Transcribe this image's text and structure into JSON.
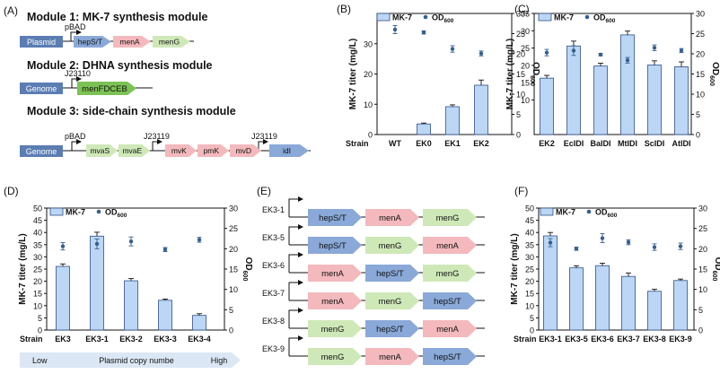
{
  "colors": {
    "bar": "#bcd7f5",
    "bar_stroke": "#2f4f8a",
    "od": "#355f8f",
    "genome": "#5b7db3",
    "plasmid": "#5b7db3",
    "pink": "#f3b9bd",
    "green": "#cfe8b8",
    "blue": "#8aa9d8",
    "dark_green": "#7cc254",
    "copy_arrow": "#dbe7f4"
  },
  "panelA": {
    "label": "(A)",
    "module1": {
      "title": "Module 1:  MK-7 synthesis module",
      "host": "Plasmid",
      "promoter": "pBAD",
      "genes": [
        "hepS/T",
        "menA",
        "menG"
      ]
    },
    "module2": {
      "title": "Module 2:  DHNA synthesis module",
      "host": "Genome",
      "promoter": "J23110",
      "genes": [
        "menFDCEB"
      ]
    },
    "module3": {
      "title": "Module 3:  side-chain synthesis module",
      "host": "Genome",
      "promoters": [
        "pBAD",
        "J23119",
        "J23119"
      ],
      "genes": [
        "mvaS",
        "mvaE",
        "mvK",
        "pmK",
        "mvD",
        "idI"
      ]
    }
  },
  "panelE": {
    "label": "(E)",
    "rows": [
      {
        "strain": "EK3-1",
        "genes": [
          "hepS/T",
          "menA",
          "menG"
        ]
      },
      {
        "strain": "EK3-5",
        "genes": [
          "hepS/T",
          "menG",
          "menA"
        ]
      },
      {
        "strain": "EK3-6",
        "genes": [
          "menA",
          "hepS/T",
          "menG"
        ]
      },
      {
        "strain": "EK3-7",
        "genes": [
          "menA",
          "menG",
          "hepS/T"
        ]
      },
      {
        "strain": "EK3-8",
        "genes": [
          "menG",
          "hepS/T",
          "menA"
        ]
      },
      {
        "strain": "EK3-9",
        "genes": [
          "menG",
          "menA",
          "hepS/T"
        ]
      }
    ]
  },
  "copy_number": {
    "low": "Low",
    "mid": "Plasmid copy numbe",
    "high": "High"
  },
  "chart_data": [
    {
      "id": "B",
      "label": "(B)",
      "type": "bar",
      "strain_label": "Strain",
      "categories": [
        "WT",
        "EK0",
        "EK1",
        "EK2"
      ],
      "series": [
        {
          "name": "MK-7",
          "values": [
            0,
            3.5,
            9.2,
            16.3
          ],
          "errors": [
            0,
            0.3,
            0.6,
            1.7
          ]
        },
        {
          "name": "OD",
          "values": [
            26.0,
            25.3,
            21.2,
            20.1
          ],
          "errors": [
            1.0,
            0.4,
            0.8,
            0.6
          ]
        }
      ],
      "ylabel": "MK-7 titer (mg/L)",
      "y2label": "OD",
      "y2label_sub": "600",
      "ylim": [
        0,
        40
      ],
      "yticks": [
        0,
        10,
        20,
        30
      ],
      "y2lim": [
        0,
        30
      ],
      "y2ticks": [
        0,
        5,
        10,
        15,
        20,
        25,
        30
      ],
      "legend": {
        "mk7": "MK-7",
        "od": "OD",
        "od_sub": "600"
      }
    },
    {
      "id": "C",
      "label": "(C)",
      "type": "bar",
      "strain_label": "",
      "categories": [
        "EK2",
        "EcIDI",
        "BaIDI",
        "MtIDI",
        "ScIDI",
        "AtIDI"
      ],
      "series": [
        {
          "name": "MK-7",
          "values": [
            16.3,
            25.6,
            19.8,
            28.8,
            20.1,
            19.6
          ],
          "errors": [
            0.8,
            1.4,
            0.8,
            1.1,
            1.2,
            1.4
          ]
        },
        {
          "name": "OD",
          "values": [
            20.3,
            20.8,
            19.8,
            18.4,
            21.5,
            20.8
          ],
          "errors": [
            0.8,
            1.2,
            0.3,
            0.7,
            0.7,
            0.5
          ]
        }
      ],
      "ylabel": "MK-7 titer (mg/L)",
      "y2label": "OD",
      "y2label_sub": "600",
      "ylim": [
        0,
        35
      ],
      "yticks": [
        10,
        15,
        20,
        25,
        30,
        35
      ],
      "y2lim": [
        0,
        30
      ],
      "y2ticks": [
        0,
        5,
        10,
        15,
        20,
        25,
        30
      ],
      "legend": {
        "mk7": "MK-7",
        "od": "OD",
        "od_sub": "600"
      }
    },
    {
      "id": "D",
      "label": "(D)",
      "type": "bar",
      "strain_label": "Strain",
      "categories": [
        "EK3",
        "EK3-1",
        "EK3-2",
        "EK3-3",
        "EK3-4"
      ],
      "series": [
        {
          "name": "MK-7",
          "values": [
            26.1,
            38.5,
            20.2,
            12.2,
            6.0
          ],
          "errors": [
            1.0,
            1.6,
            0.9,
            0.5,
            0.7
          ]
        },
        {
          "name": "OD",
          "values": [
            20.6,
            21.2,
            21.8,
            19.8,
            22.2
          ],
          "errors": [
            0.9,
            1.2,
            1.1,
            0.5,
            0.6
          ]
        }
      ],
      "ylabel": "MK-7 titer (mg/L)",
      "y2label": "OD",
      "y2label_sub": "600",
      "ylim": [
        0,
        50
      ],
      "yticks": [
        0,
        5,
        10,
        15,
        20,
        25,
        30,
        35,
        40,
        45,
        50
      ],
      "y2lim": [
        0,
        30
      ],
      "y2ticks": [
        0,
        5,
        10,
        15,
        20,
        25,
        30
      ],
      "legend": {
        "mk7": "MK-7",
        "od": "OD",
        "od_sub": "600"
      }
    },
    {
      "id": "F",
      "label": "(F)",
      "type": "bar",
      "strain_label": "Strain",
      "categories": [
        "EK3-1",
        "EK3-5",
        "EK3-6",
        "EK3-7",
        "EK3-8",
        "EK3-9"
      ],
      "series": [
        {
          "name": "MK-7",
          "values": [
            38.6,
            25.5,
            26.4,
            22.0,
            15.9,
            20.3
          ],
          "errors": [
            1.4,
            0.8,
            1.0,
            1.4,
            0.8,
            0.6
          ]
        },
        {
          "name": "OD",
          "values": [
            21.5,
            20.0,
            22.6,
            21.6,
            20.4,
            20.6
          ],
          "errors": [
            1.0,
            0.4,
            1.1,
            0.6,
            0.8,
            0.8
          ]
        }
      ],
      "ylabel": "MK-7 titer (mg/L)",
      "y2label": "OD",
      "y2label_sub": "600",
      "ylim": [
        0,
        50
      ],
      "yticks": [
        0,
        5,
        10,
        15,
        20,
        25,
        30,
        35,
        40,
        45,
        50
      ],
      "y2lim": [
        0,
        30
      ],
      "y2ticks": [
        0,
        5,
        10,
        15,
        20,
        25,
        30
      ],
      "legend": {
        "mk7": "MK-7",
        "od": "OD",
        "od_sub": "600"
      }
    }
  ]
}
